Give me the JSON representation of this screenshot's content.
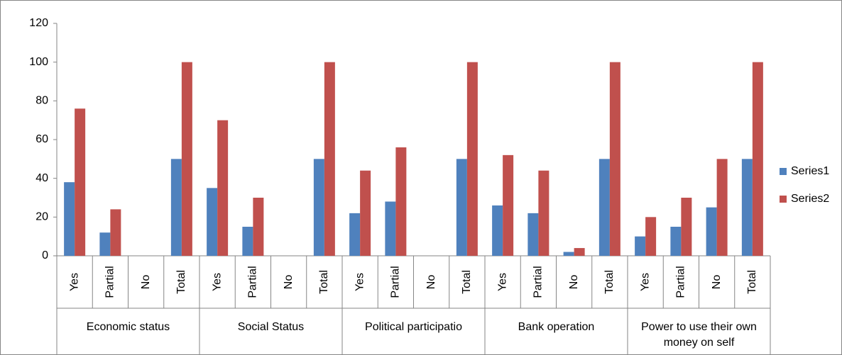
{
  "chart_data": {
    "type": "bar",
    "categories": [
      "Yes",
      "Partial",
      "No",
      "Total",
      "Yes",
      "Partial",
      "No",
      "Total",
      "Yes",
      "Partial",
      "No",
      "Total",
      "Yes",
      "Partial",
      "No",
      "Total",
      "Yes",
      "Partial",
      "No",
      "Total"
    ],
    "category_groups": [
      "Economic status",
      "Social Status",
      "Political participatio",
      "Bank operation",
      "Power to use their own money on self"
    ],
    "series": [
      {
        "name": "Series1",
        "color": "#4f81bd",
        "values": [
          38,
          12,
          0,
          50,
          35,
          15,
          0,
          50,
          22,
          28,
          0,
          50,
          26,
          22,
          2,
          50,
          10,
          15,
          25,
          50
        ]
      },
      {
        "name": "Series2",
        "color": "#c0504d",
        "values": [
          76,
          24,
          0,
          100,
          70,
          30,
          0,
          100,
          44,
          56,
          0,
          100,
          52,
          44,
          4,
          100,
          20,
          30,
          50,
          100
        ]
      }
    ],
    "ylim": [
      0,
      120
    ],
    "yticks": [
      0,
      20,
      40,
      60,
      80,
      100,
      120
    ],
    "grid": false,
    "legend": "right"
  }
}
